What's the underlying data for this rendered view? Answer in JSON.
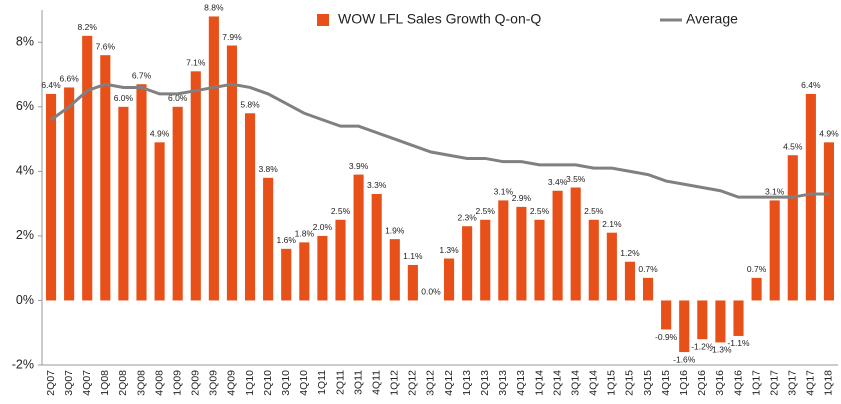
{
  "chart_data": {
    "type": "bar",
    "categories": [
      "2Q07",
      "3Q07",
      "4Q07",
      "1Q08",
      "2Q08",
      "3Q08",
      "4Q08",
      "1Q09",
      "2Q09",
      "3Q09",
      "4Q09",
      "1Q10",
      "2Q10",
      "3Q10",
      "4Q10",
      "1Q11",
      "2Q11",
      "3Q11",
      "4Q11",
      "1Q12",
      "2Q12",
      "3Q12",
      "4Q12",
      "1Q13",
      "2Q13",
      "3Q13",
      "4Q13",
      "1Q14",
      "2Q14",
      "3Q14",
      "4Q14",
      "1Q15",
      "2Q15",
      "3Q15",
      "4Q15",
      "1Q16",
      "2Q16",
      "3Q16",
      "4Q16",
      "1Q17",
      "2Q17",
      "3Q17",
      "4Q17",
      "1Q18"
    ],
    "series": [
      {
        "name": "WOW LFL Sales Growth Q-on-Q",
        "color": "#e8501a",
        "type": "bar",
        "values": [
          6.4,
          6.6,
          8.2,
          7.6,
          6.0,
          6.7,
          4.9,
          6.0,
          7.1,
          8.8,
          7.9,
          5.8,
          3.8,
          1.6,
          1.8,
          2.0,
          2.5,
          3.9,
          3.3,
          1.9,
          1.1,
          0.0,
          1.3,
          2.3,
          2.5,
          3.1,
          2.9,
          2.5,
          3.4,
          3.5,
          2.5,
          2.1,
          1.2,
          0.7,
          -0.9,
          -1.6,
          -1.2,
          -1.3,
          -1.1,
          0.7,
          3.1,
          4.5,
          6.4,
          4.9
        ],
        "value_labels": [
          "6.4%",
          "6.6%",
          "8.2%",
          "7.6%",
          "6.0%",
          "6.7%",
          "4.9%",
          "6.0%",
          "7.1%",
          "8.8%",
          "7.9%",
          "5.8%",
          "3.8%",
          "1.6%",
          "1.8%",
          "2.0%",
          "2.5%",
          "3.9%",
          "3.3%",
          "1.9%",
          "1.1%",
          "0.0%",
          "1.3%",
          "2.3%",
          "2.5%",
          "3.1%",
          "2.9%",
          "2.5%",
          "3.4%",
          "3.5%",
          "2.5%",
          "2.1%",
          "1.2%",
          "0.7%",
          "-0.9%",
          "-1.6%",
          "-1.2%",
          "-1.3%",
          "-1.1%",
          "0.7%",
          "3.1%",
          "4.5%",
          "6.4%",
          "4.9%"
        ]
      },
      {
        "name": "Average",
        "color": "#808080",
        "type": "line",
        "values": [
          5.6,
          6.0,
          6.5,
          6.7,
          6.6,
          6.6,
          6.4,
          6.4,
          6.5,
          6.6,
          6.7,
          6.6,
          6.4,
          6.1,
          5.8,
          5.6,
          5.4,
          5.4,
          5.2,
          5.0,
          4.8,
          4.6,
          4.5,
          4.4,
          4.4,
          4.3,
          4.3,
          4.2,
          4.2,
          4.2,
          4.1,
          4.1,
          4.0,
          3.9,
          3.7,
          3.6,
          3.5,
          3.4,
          3.2,
          3.2,
          3.2,
          3.2,
          3.3,
          3.3
        ]
      }
    ],
    "ylim": [
      -2,
      9
    ],
    "yticks": [
      {
        "value": -2,
        "label": "-2%"
      },
      {
        "value": 0,
        "label": "0%"
      },
      {
        "value": 2,
        "label": "2%"
      },
      {
        "value": 4,
        "label": "4%"
      },
      {
        "value": 6,
        "label": "6%"
      },
      {
        "value": 8,
        "label": "8%"
      }
    ],
    "legend": "top",
    "grid": false
  }
}
